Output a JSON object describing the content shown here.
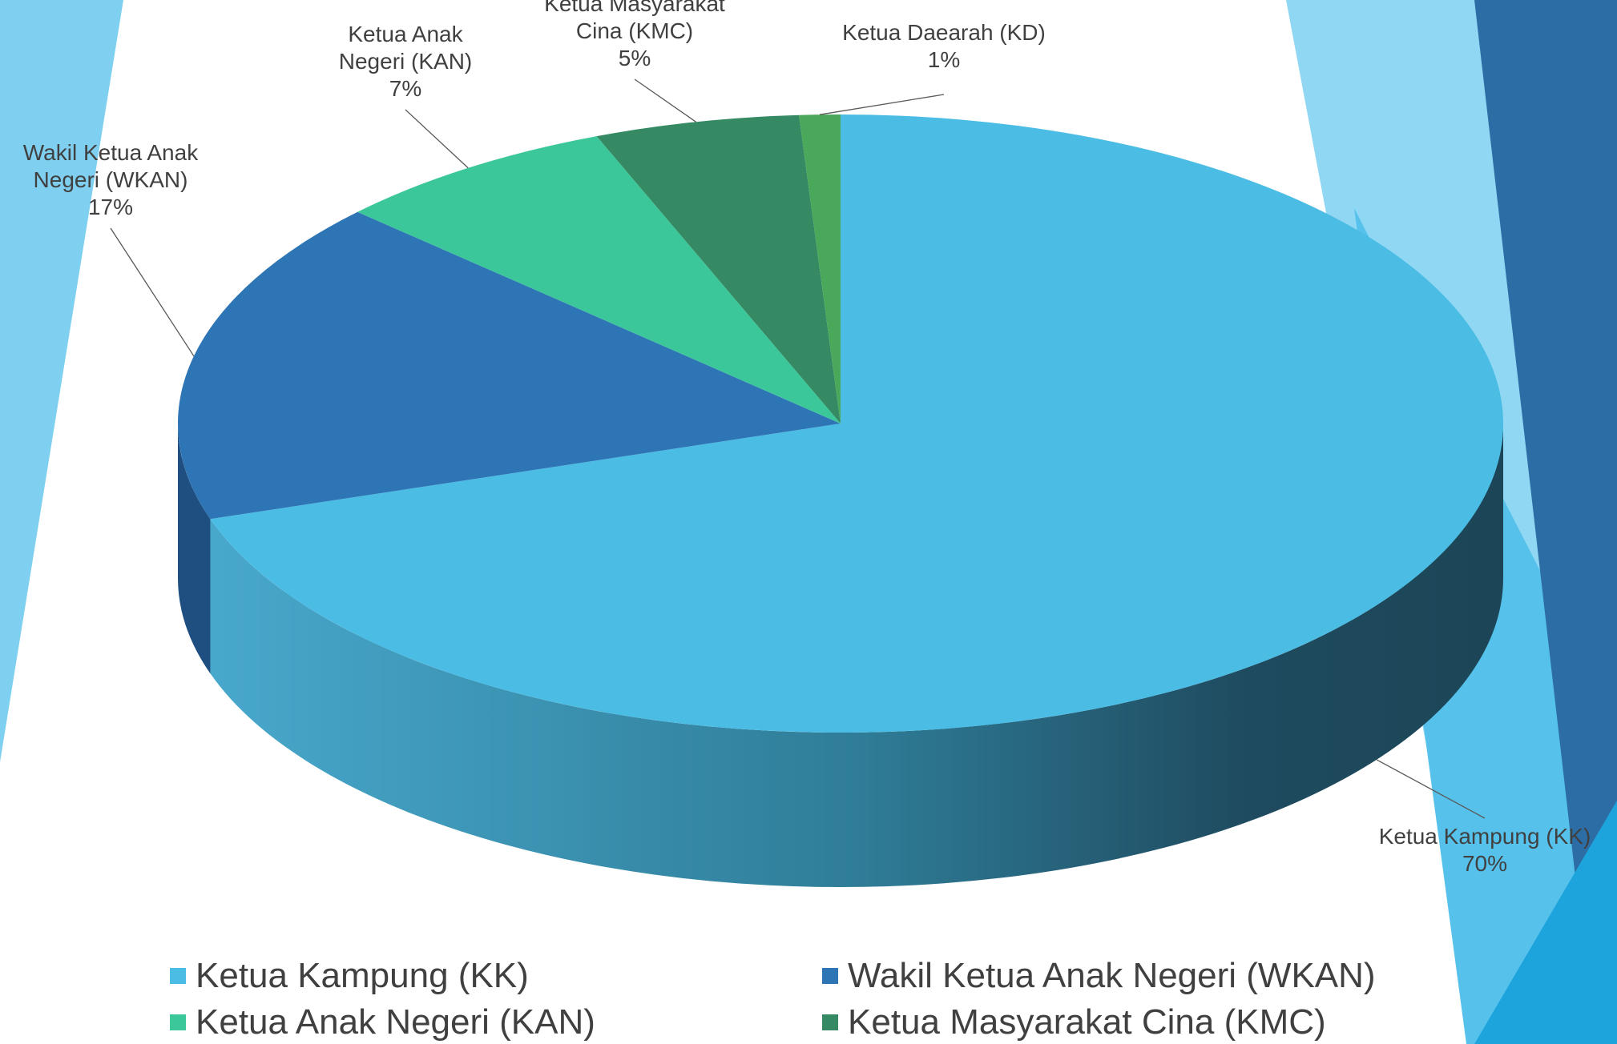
{
  "chart_data": {
    "type": "pie3d",
    "categories": [
      "Ketua Kampung (KK)",
      "Wakil Ketua Anak Negeri (WKAN)",
      "Ketua Anak Negeri (KAN)",
      "Ketua Masyarakat Cina (KMC)",
      "Ketua Daearah (KD)"
    ],
    "values": [
      70,
      17,
      7,
      5,
      1
    ],
    "value_labels": [
      "70%",
      "17%",
      "7%",
      "5%",
      "1%"
    ],
    "colors": [
      "#4bbde5",
      "#2e75b6",
      "#3cc79a",
      "#358a63",
      "#4aa85a"
    ],
    "legend": "bottom"
  }
}
